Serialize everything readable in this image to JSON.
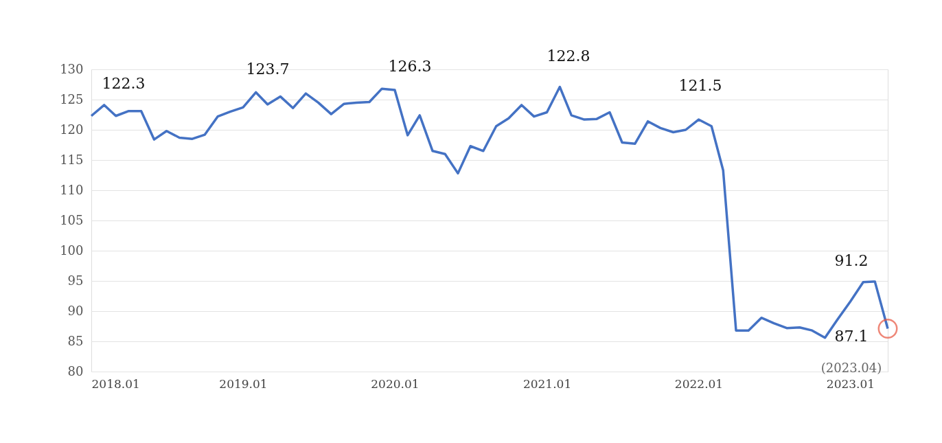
{
  "chart_data": {
    "type": "line",
    "x": [
      "2018-01",
      "2018-02",
      "2018-03",
      "2018-04",
      "2018-05",
      "2018-06",
      "2018-07",
      "2018-08",
      "2018-09",
      "2018-10",
      "2018-11",
      "2018-12",
      "2019-01",
      "2019-02",
      "2019-03",
      "2019-04",
      "2019-05",
      "2019-06",
      "2019-07",
      "2019-08",
      "2019-09",
      "2019-10",
      "2019-11",
      "2019-12",
      "2020-01",
      "2020-02",
      "2020-03",
      "2020-04",
      "2020-05",
      "2020-06",
      "2020-07",
      "2020-08",
      "2020-09",
      "2020-10",
      "2020-11",
      "2020-12",
      "2021-01",
      "2021-02",
      "2021-03",
      "2021-04",
      "2021-05",
      "2021-06",
      "2021-07",
      "2021-08",
      "2021-09",
      "2021-10",
      "2021-11",
      "2021-12",
      "2022-01",
      "2022-02",
      "2022-03",
      "2022-04",
      "2022-05",
      "2022-06",
      "2022-07",
      "2022-08",
      "2022-09",
      "2022-10",
      "2022-11",
      "2022-12",
      "2023-01",
      "2023-02",
      "2023-03",
      "2023-04"
    ],
    "series": [
      {
        "color": "#4472c4",
        "marker": "none",
        "values": [
          122.3,
          124.1,
          122.3,
          123.1,
          123.1,
          118.4,
          119.8,
          118.7,
          118.5,
          119.2,
          122.2,
          123.0,
          123.7,
          126.2,
          124.2,
          125.5,
          123.6,
          126.0,
          124.5,
          122.6,
          124.3,
          124.5,
          124.6,
          126.8,
          126.6,
          119.1,
          122.4,
          116.5,
          116.0,
          112.8,
          117.3,
          116.5,
          120.6,
          121.9,
          124.1,
          122.2,
          122.9,
          127.1,
          122.4,
          121.7,
          121.8,
          122.9,
          117.9,
          117.7,
          121.4,
          120.3,
          119.6,
          120.0,
          121.7,
          120.6,
          113.3,
          86.8,
          86.8,
          88.9,
          88.0,
          87.2,
          87.3,
          86.8,
          85.6,
          88.6,
          91.6,
          94.8,
          94.9,
          87.1
        ]
      },
      {
        "type": "scatter",
        "color": "#e8553f",
        "marker": "circle",
        "x": [
          "2023-04"
        ],
        "values": [
          87.1
        ]
      }
    ],
    "ylim": [
      80,
      130
    ],
    "yticks": [
      80,
      85,
      90,
      95,
      100,
      105,
      110,
      115,
      120,
      125,
      130
    ],
    "xlim": [
      "2018-01",
      "2023-04"
    ],
    "xticks": [
      {
        "value": "2018-01",
        "label": "2018.01"
      },
      {
        "value": "2019-01",
        "label": "2019.01"
      },
      {
        "value": "2020-01",
        "label": "2020.01"
      },
      {
        "value": "2021-01",
        "label": "2021.01"
      },
      {
        "value": "2022-01",
        "label": "2022.01"
      },
      {
        "value": "2023-01",
        "label": "2023.01"
      }
    ],
    "grid": "y",
    "line_style": "solid",
    "annotations": [
      "122.3",
      "123.7",
      "126.3",
      "122.8",
      "121.5",
      "91.2",
      "87.1",
      "(2023.04)"
    ]
  }
}
